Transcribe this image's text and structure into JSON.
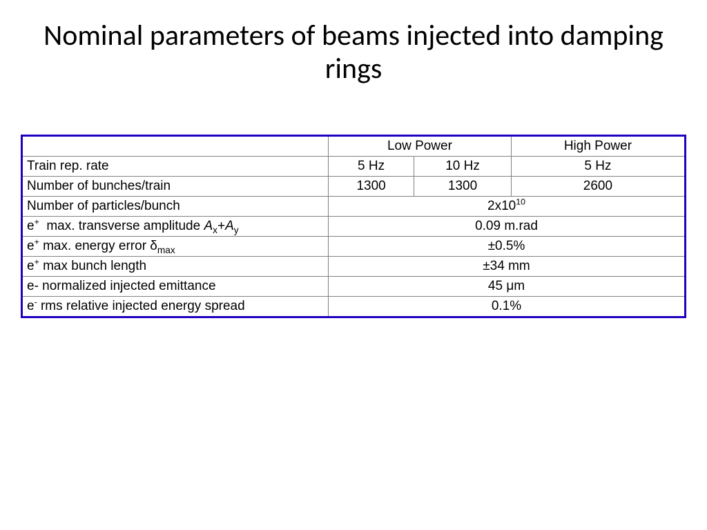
{
  "title": "Nominal parameters of beams injected into damping rings",
  "table": {
    "border_color": "#2000c0",
    "grid_color": "#808080",
    "background_color": "#ffffff",
    "font_size": 19,
    "header": {
      "low_power": "Low Power",
      "high_power": "High Power"
    },
    "rows": {
      "row1": {
        "label": "Train rep. rate",
        "c1": "5 Hz",
        "c2": "10 Hz",
        "c3": "5 Hz"
      },
      "row2": {
        "label": "Number of bunches/train",
        "c1": "1300",
        "c2": "1300",
        "c3": "2600"
      },
      "row3": {
        "label_html": "Number of particles/bunch",
        "value_html": "2x10<sup>10</sup>"
      },
      "row4": {
        "label_html": "e<sup>+</sup>  max. transverse amplitude <span class=\"ital\">A</span><sub>x</sub>+<span class=\"ital\">A</span><sub>y</sub>",
        "value_html": "0.09 m.rad"
      },
      "row5": {
        "label_html": "e<sup>+</sup> max. energy error δ<sub>max</sub>",
        "value_html": "±0.5%"
      },
      "row6": {
        "label_html": "e<sup>+</sup> max bunch length",
        "value_html": "±34 mm"
      },
      "row7": {
        "label_html": "e- normalized injected emittance",
        "value_html": "45 μm"
      },
      "row8": {
        "label_html": "e<sup>-</sup> rms relative injected energy spread",
        "value_html": "0.1%"
      }
    },
    "col_widths_pct": [
      44.7,
      18.4,
      18.4,
      18.5
    ]
  }
}
